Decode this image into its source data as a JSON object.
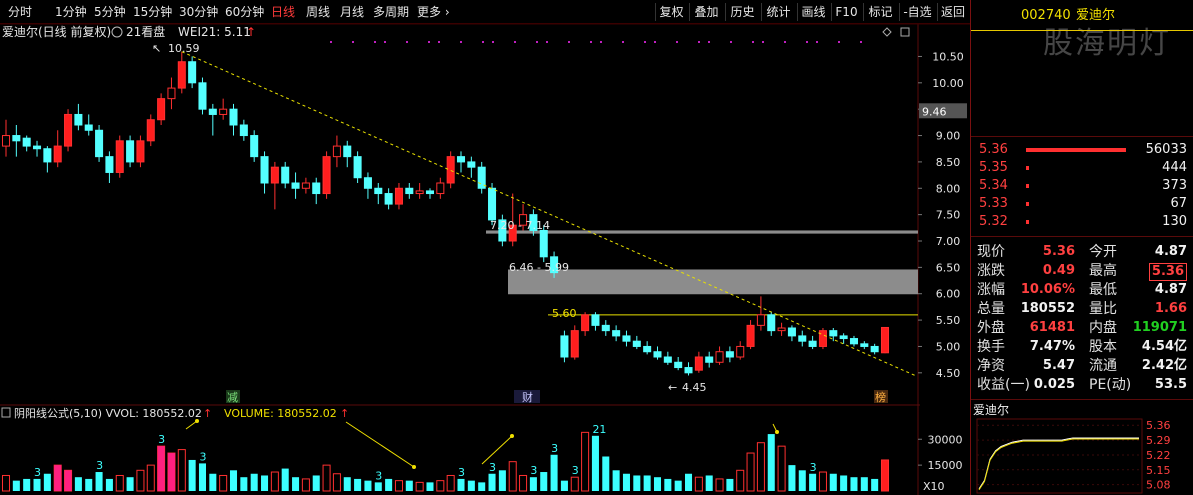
{
  "toolbar": {
    "periods": [
      "分时",
      "1分钟",
      "5分钟",
      "15分钟",
      "30分钟",
      "60分钟",
      "日线",
      "周线",
      "月线",
      "多周期",
      "更多"
    ],
    "active_period": "日线",
    "more_chevron": "›",
    "buttons": [
      "复权",
      "叠加",
      "历史",
      "统计",
      "画线",
      "F10",
      "标记",
      "-自选",
      "返回"
    ]
  },
  "chart_header": {
    "title": "爱迪尔(日线 前复权)",
    "indicator": "21看盘",
    "wei_label": "WEI21: 5.11",
    "up_mark": "↑"
  },
  "chart_data": {
    "type": "candlestick",
    "price_axis": [
      "10.50",
      "10.00",
      "9.50",
      "9.00",
      "8.50",
      "8.00",
      "7.50",
      "7.00",
      "6.50",
      "6.00",
      "5.50",
      "5.00",
      "4.50"
    ],
    "ylim": [
      4.25,
      10.85
    ],
    "cursor_price": "9.46",
    "high_annotation": "10.59",
    "low_annotation": "4.45",
    "zone_labels": [
      "7.20 - 7.14",
      "6.46 - 5.99"
    ],
    "zones": [
      {
        "low": 7.14,
        "high": 7.2
      },
      {
        "low": 5.99,
        "high": 6.46
      }
    ],
    "resistance_label": "5.60",
    "resistance_level": 5.6,
    "markers": [
      "减",
      "财",
      "榜"
    ],
    "candles": [
      {
        "o": 8.8,
        "c": 9.0,
        "h": 9.3,
        "l": 8.6
      },
      {
        "o": 9.0,
        "c": 8.9,
        "h": 9.2,
        "l": 8.6
      },
      {
        "o": 8.95,
        "c": 8.8,
        "h": 9.0,
        "l": 8.7
      },
      {
        "o": 8.8,
        "c": 8.75,
        "h": 8.9,
        "l": 8.6
      },
      {
        "o": 8.75,
        "c": 8.5,
        "h": 8.8,
        "l": 8.3
      },
      {
        "o": 8.5,
        "c": 8.8,
        "h": 9.1,
        "l": 8.4
      },
      {
        "o": 8.8,
        "c": 9.4,
        "h": 9.5,
        "l": 8.7
      },
      {
        "o": 9.4,
        "c": 9.2,
        "h": 9.6,
        "l": 9.1
      },
      {
        "o": 9.2,
        "c": 9.1,
        "h": 9.4,
        "l": 9.0
      },
      {
        "o": 9.1,
        "c": 8.6,
        "h": 9.2,
        "l": 8.5
      },
      {
        "o": 8.6,
        "c": 8.3,
        "h": 8.7,
        "l": 8.1
      },
      {
        "o": 8.3,
        "c": 8.9,
        "h": 9.0,
        "l": 8.2
      },
      {
        "o": 8.9,
        "c": 8.5,
        "h": 9.0,
        "l": 8.4
      },
      {
        "o": 8.5,
        "c": 8.9,
        "h": 9.0,
        "l": 8.4
      },
      {
        "o": 8.9,
        "c": 9.3,
        "h": 9.4,
        "l": 8.8
      },
      {
        "o": 9.3,
        "c": 9.7,
        "h": 9.8,
        "l": 9.2
      },
      {
        "o": 9.7,
        "c": 9.9,
        "h": 10.1,
        "l": 9.5
      },
      {
        "o": 9.9,
        "c": 10.4,
        "h": 10.59,
        "l": 9.8
      },
      {
        "o": 10.4,
        "c": 10.0,
        "h": 10.5,
        "l": 9.9
      },
      {
        "o": 10.0,
        "c": 9.5,
        "h": 10.1,
        "l": 9.4
      },
      {
        "o": 9.5,
        "c": 9.4,
        "h": 9.6,
        "l": 9.0
      },
      {
        "o": 9.4,
        "c": 9.5,
        "h": 9.7,
        "l": 9.3
      },
      {
        "o": 9.5,
        "c": 9.2,
        "h": 9.6,
        "l": 9.0
      },
      {
        "o": 9.2,
        "c": 9.0,
        "h": 9.3,
        "l": 8.9
      },
      {
        "o": 9.0,
        "c": 8.6,
        "h": 9.1,
        "l": 8.5
      },
      {
        "o": 8.6,
        "c": 8.1,
        "h": 8.7,
        "l": 7.9
      },
      {
        "o": 8.1,
        "c": 8.4,
        "h": 8.5,
        "l": 7.6
      },
      {
        "o": 8.4,
        "c": 8.1,
        "h": 8.5,
        "l": 8.0
      },
      {
        "o": 8.1,
        "c": 8.0,
        "h": 8.3,
        "l": 7.8
      },
      {
        "o": 8.0,
        "c": 8.1,
        "h": 8.2,
        "l": 7.9
      },
      {
        "o": 8.1,
        "c": 7.9,
        "h": 8.2,
        "l": 7.7
      },
      {
        "o": 7.9,
        "c": 8.6,
        "h": 8.7,
        "l": 7.8
      },
      {
        "o": 8.6,
        "c": 8.8,
        "h": 9.0,
        "l": 8.4
      },
      {
        "o": 8.8,
        "c": 8.6,
        "h": 8.9,
        "l": 8.4
      },
      {
        "o": 8.6,
        "c": 8.2,
        "h": 8.7,
        "l": 8.1
      },
      {
        "o": 8.2,
        "c": 8.0,
        "h": 8.3,
        "l": 7.8
      },
      {
        "o": 8.0,
        "c": 7.9,
        "h": 8.1,
        "l": 7.7
      },
      {
        "o": 7.9,
        "c": 7.7,
        "h": 8.0,
        "l": 7.6
      },
      {
        "o": 7.7,
        "c": 8.0,
        "h": 8.1,
        "l": 7.6
      },
      {
        "o": 8.0,
        "c": 7.9,
        "h": 8.1,
        "l": 7.8
      },
      {
        "o": 7.9,
        "c": 7.95,
        "h": 8.1,
        "l": 7.8
      },
      {
        "o": 7.95,
        "c": 7.9,
        "h": 8.0,
        "l": 7.8
      },
      {
        "o": 7.9,
        "c": 8.1,
        "h": 8.2,
        "l": 7.8
      },
      {
        "o": 8.1,
        "c": 8.6,
        "h": 8.7,
        "l": 8.0
      },
      {
        "o": 8.6,
        "c": 8.5,
        "h": 8.7,
        "l": 8.3
      },
      {
        "o": 8.5,
        "c": 8.4,
        "h": 8.6,
        "l": 8.2
      },
      {
        "o": 8.4,
        "c": 8.0,
        "h": 8.5,
        "l": 7.9
      },
      {
        "o": 8.0,
        "c": 7.4,
        "h": 8.1,
        "l": 7.3
      },
      {
        "o": 7.4,
        "c": 7.0,
        "h": 7.5,
        "l": 6.9
      },
      {
        "o": 7.0,
        "c": 7.3,
        "h": 7.9,
        "l": 6.9
      },
      {
        "o": 7.3,
        "c": 7.5,
        "h": 7.7,
        "l": 7.2
      },
      {
        "o": 7.5,
        "c": 7.2,
        "h": 7.6,
        "l": 7.1
      },
      {
        "o": 7.2,
        "c": 6.7,
        "h": 7.3,
        "l": 6.6
      },
      {
        "o": 6.7,
        "c": 6.4,
        "h": 6.8,
        "l": 6.3
      },
      {
        "o": 5.2,
        "c": 4.8,
        "h": 5.3,
        "l": 4.7
      },
      {
        "o": 4.8,
        "c": 5.3,
        "h": 5.4,
        "l": 4.75
      },
      {
        "o": 5.3,
        "c": 5.6,
        "h": 5.65,
        "l": 5.2
      },
      {
        "o": 5.6,
        "c": 5.4,
        "h": 5.65,
        "l": 5.3
      },
      {
        "o": 5.4,
        "c": 5.3,
        "h": 5.5,
        "l": 5.2
      },
      {
        "o": 5.3,
        "c": 5.2,
        "h": 5.4,
        "l": 5.1
      },
      {
        "o": 5.2,
        "c": 5.1,
        "h": 5.3,
        "l": 5.0
      },
      {
        "o": 5.1,
        "c": 5.0,
        "h": 5.2,
        "l": 4.95
      },
      {
        "o": 5.0,
        "c": 4.9,
        "h": 5.1,
        "l": 4.85
      },
      {
        "o": 4.9,
        "c": 4.8,
        "h": 5.0,
        "l": 4.75
      },
      {
        "o": 4.8,
        "c": 4.7,
        "h": 4.9,
        "l": 4.65
      },
      {
        "o": 4.7,
        "c": 4.6,
        "h": 4.8,
        "l": 4.55
      },
      {
        "o": 4.6,
        "c": 4.5,
        "h": 4.7,
        "l": 4.45
      },
      {
        "o": 4.55,
        "c": 4.8,
        "h": 4.9,
        "l": 4.5
      },
      {
        "o": 4.8,
        "c": 4.7,
        "h": 4.9,
        "l": 4.6
      },
      {
        "o": 4.7,
        "c": 4.9,
        "h": 5.0,
        "l": 4.65
      },
      {
        "o": 4.9,
        "c": 4.8,
        "h": 5.0,
        "l": 4.7
      },
      {
        "o": 4.8,
        "c": 5.0,
        "h": 5.1,
        "l": 4.75
      },
      {
        "o": 5.0,
        "c": 5.4,
        "h": 5.5,
        "l": 4.95
      },
      {
        "o": 5.4,
        "c": 5.6,
        "h": 5.95,
        "l": 5.3
      },
      {
        "o": 5.6,
        "c": 5.3,
        "h": 5.65,
        "l": 5.2
      },
      {
        "o": 5.3,
        "c": 5.35,
        "h": 5.45,
        "l": 5.2
      },
      {
        "o": 5.35,
        "c": 5.2,
        "h": 5.4,
        "l": 5.1
      },
      {
        "o": 5.2,
        "c": 5.1,
        "h": 5.3,
        "l": 5.0
      },
      {
        "o": 5.1,
        "c": 5.0,
        "h": 5.2,
        "l": 4.95
      },
      {
        "o": 5.0,
        "c": 5.3,
        "h": 5.35,
        "l": 4.95
      },
      {
        "o": 5.3,
        "c": 5.2,
        "h": 5.35,
        "l": 5.1
      },
      {
        "o": 5.2,
        "c": 5.15,
        "h": 5.25,
        "l": 5.05
      },
      {
        "o": 5.15,
        "c": 5.05,
        "h": 5.2,
        "l": 5.0
      },
      {
        "o": 5.05,
        "c": 5.0,
        "h": 5.1,
        "l": 4.95
      },
      {
        "o": 5.0,
        "c": 4.9,
        "h": 5.05,
        "l": 4.85
      },
      {
        "o": 4.88,
        "c": 5.36,
        "h": 5.36,
        "l": 4.87
      }
    ],
    "volume": {
      "label": "VOLUME: 180552.02",
      "indicator_label": "阴阳线公式(5,10)  VVOL: 180552.02",
      "up_mark": "↑",
      "multiplier": "X10",
      "axis": [
        "30000",
        "15000"
      ],
      "ylim": [
        0,
        40000
      ],
      "values": [
        9000,
        6000,
        7000,
        7000,
        10000,
        15000,
        12000,
        8000,
        7000,
        11000,
        7000,
        9000,
        8000,
        12000,
        15000,
        26000,
        22000,
        24000,
        18000,
        16000,
        10000,
        9000,
        12000,
        8000,
        10000,
        9000,
        11000,
        13000,
        8000,
        7000,
        9000,
        15000,
        10000,
        8000,
        7000,
        6000,
        5000,
        7000,
        6000,
        6000,
        5000,
        5000,
        6000,
        9000,
        7000,
        6000,
        5000,
        10000,
        12000,
        17000,
        9000,
        8000,
        11000,
        21000,
        6000,
        8000,
        34000,
        32000,
        20000,
        12000,
        10000,
        9000,
        9000,
        8000,
        7000,
        6000,
        10000,
        8000,
        9000,
        7000,
        7000,
        12000,
        22000,
        28000,
        33000,
        26000,
        15000,
        12000,
        10000,
        11000,
        10000,
        9000,
        8000,
        8000,
        7000,
        18000
      ],
      "marks": [
        "3",
        "3",
        "3",
        "3",
        "3",
        "3",
        "3",
        "3",
        "3",
        "3",
        "21",
        "3"
      ]
    }
  },
  "right_panel": {
    "code": "002740",
    "name": "爱迪尔",
    "watermark": "股海明灯",
    "order_book": [
      {
        "price": "5.36",
        "vol": "56033",
        "bar": 1.0
      },
      {
        "price": "5.35",
        "vol": "444",
        "bar": 0.02
      },
      {
        "price": "5.34",
        "vol": "373",
        "bar": 0.02
      },
      {
        "price": "5.33",
        "vol": "67",
        "bar": 0.02
      },
      {
        "price": "5.32",
        "vol": "130",
        "bar": 0.02
      }
    ],
    "stats": [
      [
        {
          "label": "现价",
          "value": "5.36",
          "color": "red"
        },
        {
          "label": "今开",
          "value": "4.87",
          "color": "white"
        }
      ],
      [
        {
          "label": "涨跌",
          "value": "0.49",
          "color": "red"
        },
        {
          "label": "最高",
          "value": "5.36",
          "color": "red"
        }
      ],
      [
        {
          "label": "涨幅",
          "value": "10.06%",
          "color": "red"
        },
        {
          "label": "最低",
          "value": "4.87",
          "color": "white"
        }
      ],
      [
        {
          "label": "总量",
          "value": "180552",
          "color": "white"
        },
        {
          "label": "量比",
          "value": "1.66",
          "color": "red"
        }
      ],
      [
        {
          "label": "外盘",
          "value": "61481",
          "color": "red"
        },
        {
          "label": "内盘",
          "value": "119071",
          "color": "green"
        }
      ],
      [
        {
          "label": "换手",
          "value": "7.47%",
          "color": "white"
        },
        {
          "label": "股本",
          "value": "4.54亿",
          "color": "white"
        }
      ],
      [
        {
          "label": "净资",
          "value": "5.47",
          "color": "white"
        },
        {
          "label": "流通",
          "value": "2.42亿",
          "color": "white"
        }
      ],
      [
        {
          "label": "收益(一)",
          "value": "0.025",
          "color": "white"
        },
        {
          "label": "PE(动)",
          "value": "53.5",
          "color": "white"
        }
      ]
    ],
    "mini_chart": {
      "title": "爱迪尔",
      "axis": [
        "5.36",
        "5.29",
        "5.22",
        "5.15",
        "5.08"
      ],
      "ylim": [
        5.05,
        5.38
      ],
      "series": [
        5.06,
        5.1,
        5.2,
        5.24,
        5.26,
        5.27,
        5.28,
        5.285,
        5.29,
        5.29,
        5.29,
        5.29,
        5.29,
        5.29,
        5.29,
        5.29,
        5.295,
        5.3,
        5.3,
        5.3,
        5.3,
        5.3,
        5.3,
        5.3,
        5.3,
        5.3,
        5.3,
        5.3,
        5.3,
        5.3
      ]
    }
  },
  "colors": {
    "up": "#ff3030",
    "up_fill": "#ff1e1e",
    "down": "#54ffff",
    "vol_up": "#ff2080",
    "vol_down": "#3cffff",
    "trend": "#e8e000",
    "zone": "#8c8c8c"
  }
}
